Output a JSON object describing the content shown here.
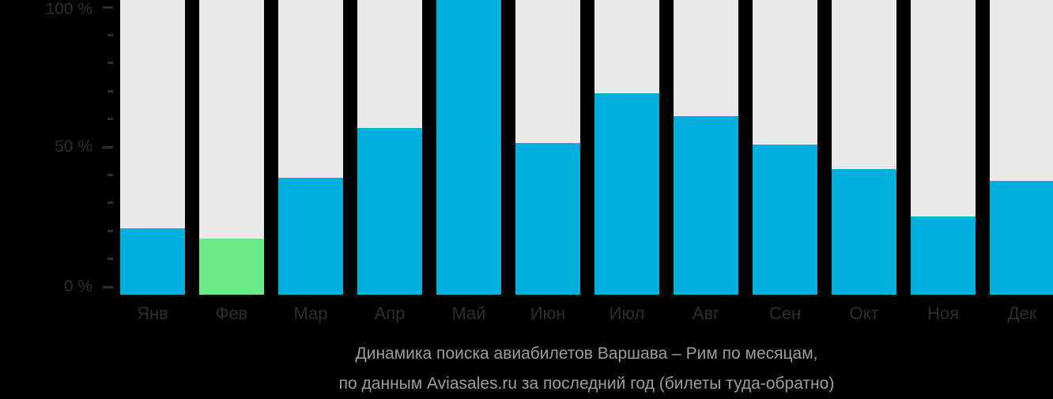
{
  "colors": {
    "background": "#000000",
    "bar": "#00b0dc",
    "bar_highlight": "#69ea87",
    "bar_track": "#e9e9e9",
    "axis_text": "#2e2e2e",
    "tick": "#2e2e2e",
    "caption_text": "#9d9d9d"
  },
  "chart_data": {
    "type": "bar",
    "title": "Динамика поиска авиабилетов Варшава – Рим по месяцам, по данным Aviasales.ru за последний год (билеты туда-обратно)",
    "categories": [
      "Янв",
      "Фев",
      "Мар",
      "Апр",
      "Май",
      "Июн",
      "Июл",
      "Авг",
      "Сен",
      "Окт",
      "Ноя",
      "Дек"
    ],
    "values": [
      22.5,
      19,
      39.7,
      56.5,
      100,
      51.5,
      68.5,
      60.5,
      51,
      42.5,
      26.5,
      38.5
    ],
    "unit": "%",
    "xlabel": "",
    "ylabel": "",
    "ylim": [
      0,
      100
    ],
    "grid": "off",
    "legend": "none",
    "highlight_index": 1,
    "y_axis": {
      "major": [
        {
          "pct": 100,
          "label": "100 %"
        },
        {
          "pct": 50,
          "label": "50 %"
        },
        {
          "pct": 0,
          "label": "0 %"
        }
      ],
      "minor_pcts": [
        90,
        80,
        70,
        60,
        40,
        30,
        20,
        10
      ]
    }
  },
  "caption": {
    "line1": "Динамика поиска авиабилетов Варшава – Рим по месяцам,",
    "line2": "по данным Aviasales.ru за последний год (билеты туда-обратно)"
  }
}
